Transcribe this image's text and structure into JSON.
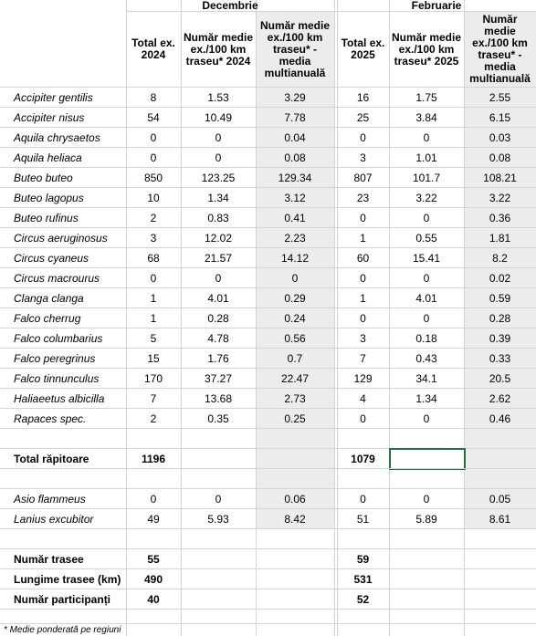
{
  "header": {
    "groups": [
      "Decembrie",
      "Februarie"
    ],
    "columns": [
      "Total ex. 2024",
      "Număr medie ex./100 km traseu* 2024",
      "Număr medie ex./100 km traseu* - media multianuală",
      "Total ex. 2025",
      "Număr medie ex./100 km traseu* 2025",
      "Număr medie ex./100 km traseu* - media multianuală"
    ]
  },
  "species": [
    {
      "name": "Accipiter gentilis",
      "values": [
        8,
        1.53,
        3.29,
        16,
        1.75,
        2.55
      ]
    },
    {
      "name": "Accipiter nisus",
      "values": [
        54,
        10.49,
        7.78,
        25,
        3.84,
        6.15
      ]
    },
    {
      "name": "Aquila chrysaetos",
      "values": [
        0,
        0,
        0.04,
        0,
        0,
        0.03
      ]
    },
    {
      "name": "Aquila heliaca",
      "values": [
        0,
        0,
        0.08,
        3,
        1.01,
        0.08
      ]
    },
    {
      "name": "Buteo buteo",
      "values": [
        850,
        123.25,
        129.34,
        807,
        101.7,
        108.21
      ]
    },
    {
      "name": "Buteo lagopus",
      "values": [
        10,
        1.34,
        3.12,
        23,
        3.22,
        3.22
      ]
    },
    {
      "name": "Buteo rufinus",
      "values": [
        2,
        0.83,
        0.41,
        0,
        0,
        0.36
      ]
    },
    {
      "name": "Circus aeruginosus",
      "values": [
        3,
        12.02,
        2.23,
        1,
        0.55,
        1.81
      ]
    },
    {
      "name": "Circus cyaneus",
      "values": [
        68,
        21.57,
        14.12,
        60,
        15.41,
        8.2
      ]
    },
    {
      "name": "Circus macrourus",
      "values": [
        0,
        0,
        0,
        0,
        0,
        0.02
      ]
    },
    {
      "name": "Clanga clanga",
      "values": [
        1,
        4.01,
        0.29,
        1,
        4.01,
        0.59
      ]
    },
    {
      "name": "Falco cherrug",
      "values": [
        1,
        0.28,
        0.24,
        0,
        0,
        0.28
      ]
    },
    {
      "name": "Falco columbarius",
      "values": [
        5,
        4.78,
        0.56,
        3,
        0.18,
        0.39
      ]
    },
    {
      "name": "Falco peregrinus",
      "values": [
        15,
        1.76,
        0.7,
        7,
        0.43,
        0.33
      ]
    },
    {
      "name": "Falco tinnunculus",
      "values": [
        170,
        37.27,
        22.47,
        129,
        34.1,
        20.5
      ]
    },
    {
      "name": "Haliaeetus albicilla",
      "values": [
        7,
        13.68,
        2.73,
        4,
        1.34,
        2.62
      ]
    },
    {
      "name": "Rapaces spec.",
      "values": [
        2,
        0.35,
        0.25,
        0,
        0,
        0.46
      ]
    }
  ],
  "total": {
    "label": "Total răpitoare",
    "values": [
      1196,
      1079
    ]
  },
  "other_species": [
    {
      "name": "Asio flammeus",
      "values": [
        0,
        0,
        0.06,
        0,
        0,
        0.05
      ]
    },
    {
      "name": "Lanius excubitor",
      "values": [
        49,
        5.93,
        8.42,
        51,
        5.89,
        8.61
      ]
    }
  ],
  "summary": [
    {
      "label": "Număr trasee",
      "values": [
        55,
        59
      ]
    },
    {
      "label": "Lungime trasee (km)",
      "values": [
        490,
        531
      ]
    },
    {
      "label": "Număr participanți",
      "values": [
        40,
        52
      ]
    }
  ],
  "footnote": "* Medie ponderată pe regiuni"
}
